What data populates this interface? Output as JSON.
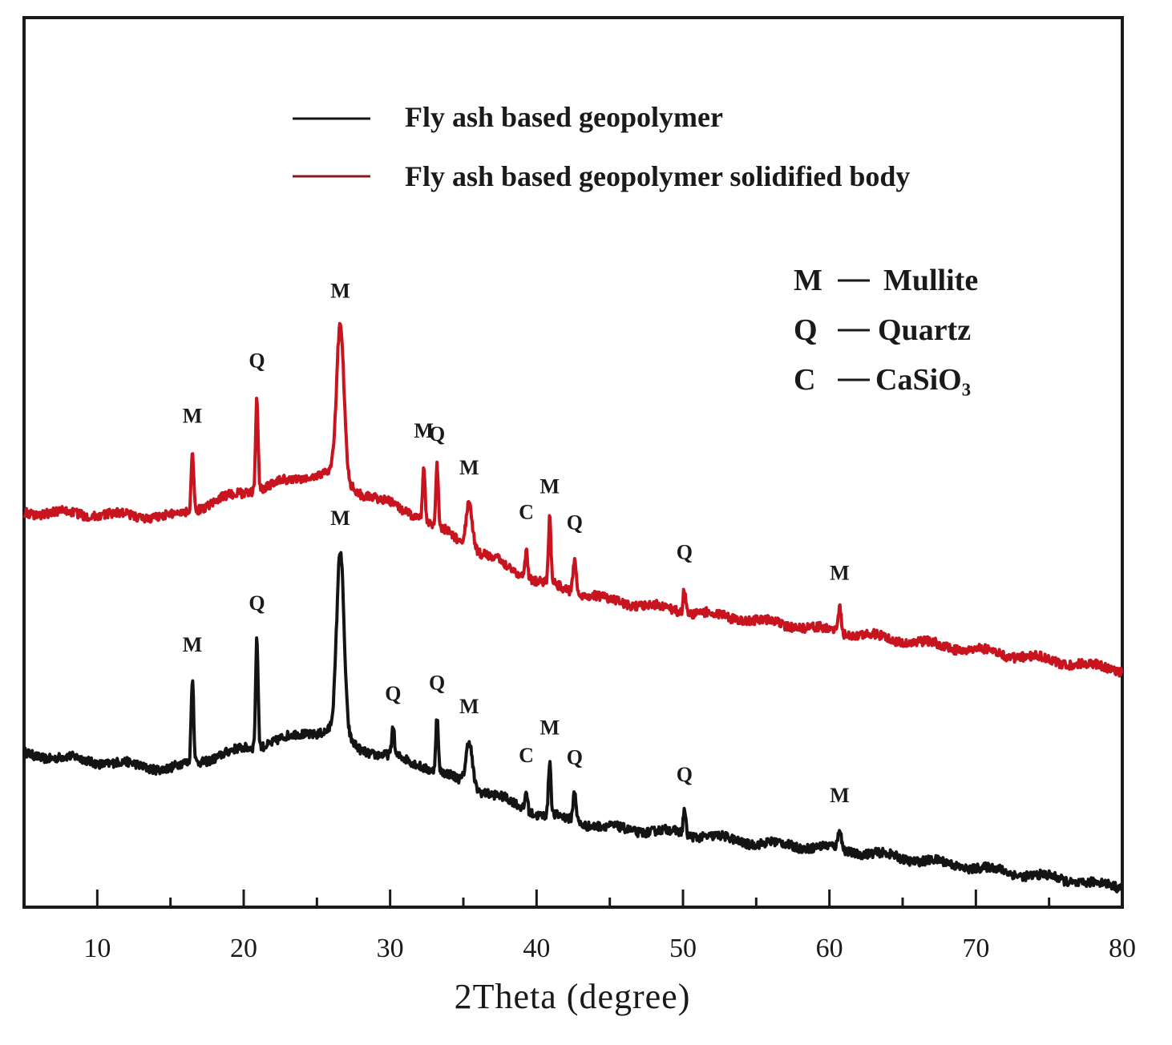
{
  "chart_data": {
    "type": "line",
    "title": "",
    "xlabel": "2Theta (degree)",
    "ylabel": "",
    "xlim": [
      5,
      80
    ],
    "ylim": [
      0,
      9
    ],
    "grid": false,
    "x_ticks": [
      "10",
      "20",
      "30",
      "40",
      "50",
      "60",
      "70",
      "80"
    ],
    "legend": {
      "placement": "top-center",
      "entries": [
        "Fly ash based geopolymer",
        "Fly ash based geopolymer solidified body"
      ]
    },
    "phase_legend": [
      {
        "symbol": "M",
        "phase": "Mullite"
      },
      {
        "symbol": "Q",
        "phase": "Quartz"
      },
      {
        "symbol": "C",
        "phase": "CaSiO₃"
      }
    ],
    "series": [
      {
        "name": "Fly ash based geopolymer",
        "color": "#141414",
        "baseline": [
          [
            5,
            1.55
          ],
          [
            15,
            1.4
          ],
          [
            20,
            1.6
          ],
          [
            24,
            1.75
          ],
          [
            26,
            1.8
          ],
          [
            28,
            1.6
          ],
          [
            32,
            1.45
          ],
          [
            36,
            1.2
          ],
          [
            40,
            0.95
          ],
          [
            45,
            0.8
          ],
          [
            50,
            0.75
          ],
          [
            55,
            0.65
          ],
          [
            60,
            0.6
          ],
          [
            65,
            0.5
          ],
          [
            70,
            0.4
          ],
          [
            75,
            0.3
          ],
          [
            80,
            0.2
          ]
        ],
        "peaks": [
          {
            "x": 16.5,
            "height": 0.85,
            "width": 0.12,
            "label": "M"
          },
          {
            "x": 20.9,
            "height": 1.1,
            "width": 0.12,
            "label": "Q"
          },
          {
            "x": 26.6,
            "height": 1.85,
            "width": 0.35,
            "label": "M"
          },
          {
            "x": 30.2,
            "height": 0.3,
            "width": 0.12,
            "label": "Q"
          },
          {
            "x": 33.2,
            "height": 0.55,
            "width": 0.12,
            "label": "Q"
          },
          {
            "x": 35.4,
            "height": 0.45,
            "width": 0.3,
            "label": "M"
          },
          {
            "x": 39.3,
            "height": 0.2,
            "width": 0.12,
            "label": "C"
          },
          {
            "x": 40.9,
            "height": 0.55,
            "width": 0.12,
            "label": "M"
          },
          {
            "x": 42.6,
            "height": 0.3,
            "width": 0.15,
            "label": "Q"
          },
          {
            "x": 50.1,
            "height": 0.25,
            "width": 0.12,
            "label": "Q"
          },
          {
            "x": 60.7,
            "height": 0.2,
            "width": 0.15,
            "label": "M"
          }
        ]
      },
      {
        "name": "Fly ash based geopolymer solidified body",
        "color": "#c8141e",
        "baseline": [
          [
            5,
            4.0
          ],
          [
            15,
            3.95
          ],
          [
            20,
            4.2
          ],
          [
            24,
            4.35
          ],
          [
            26,
            4.4
          ],
          [
            28,
            4.2
          ],
          [
            32,
            3.95
          ],
          [
            36,
            3.6
          ],
          [
            40,
            3.3
          ],
          [
            45,
            3.1
          ],
          [
            50,
            3.0
          ],
          [
            55,
            2.9
          ],
          [
            60,
            2.8
          ],
          [
            65,
            2.7
          ],
          [
            70,
            2.6
          ],
          [
            75,
            2.5
          ],
          [
            80,
            2.4
          ]
        ],
        "peaks": [
          {
            "x": 16.5,
            "height": 0.6,
            "width": 0.12,
            "label": "M"
          },
          {
            "x": 20.9,
            "height": 0.95,
            "width": 0.12,
            "label": "Q"
          },
          {
            "x": 26.6,
            "height": 1.55,
            "width": 0.35,
            "label": "M"
          },
          {
            "x": 32.3,
            "height": 0.55,
            "width": 0.12,
            "label": "M"
          },
          {
            "x": 33.2,
            "height": 0.6,
            "width": 0.12,
            "label": "Q"
          },
          {
            "x": 35.4,
            "height": 0.45,
            "width": 0.3,
            "label": "M"
          },
          {
            "x": 39.3,
            "height": 0.3,
            "width": 0.12,
            "label": "C"
          },
          {
            "x": 40.9,
            "height": 0.65,
            "width": 0.12,
            "label": "M"
          },
          {
            "x": 42.6,
            "height": 0.35,
            "width": 0.15,
            "label": "Q"
          },
          {
            "x": 50.1,
            "height": 0.25,
            "width": 0.12,
            "label": "Q"
          },
          {
            "x": 60.7,
            "height": 0.25,
            "width": 0.15,
            "label": "M"
          }
        ]
      }
    ]
  }
}
